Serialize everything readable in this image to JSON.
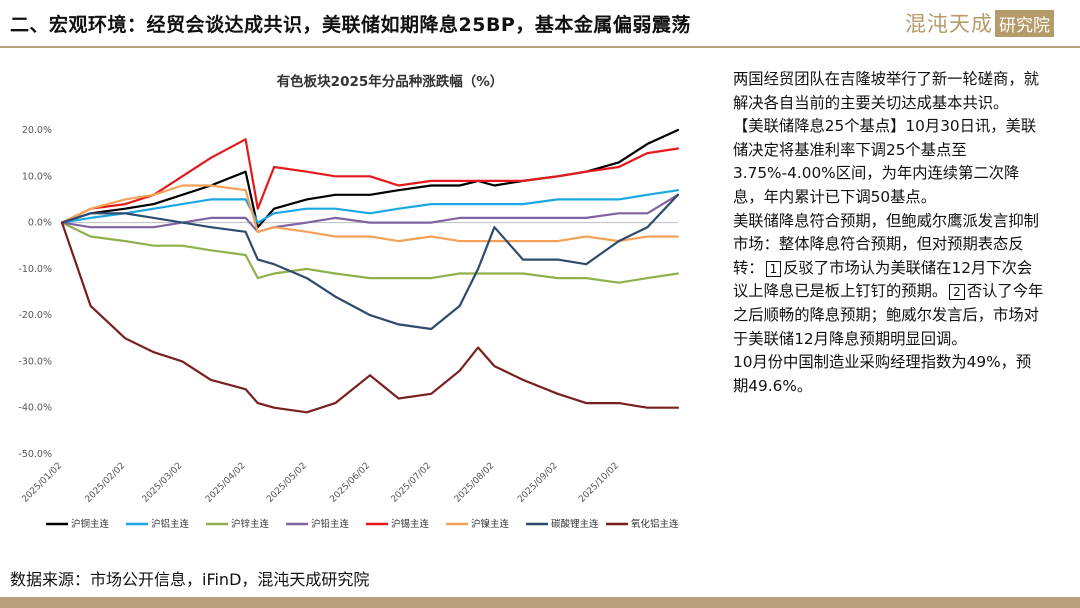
{
  "header": {
    "title": "二、宏观环境：经贸会谈达成共识，美联储如期降息25BP，基本金属偏弱震荡",
    "logo_text": "混沌天成",
    "logo_box": "研究院",
    "accent_color": "#b8a07a"
  },
  "chart_data": {
    "type": "line",
    "title": "有色板块2025年分品种涨跌幅（%）",
    "xlabel": "",
    "ylabel": "",
    "ylim": [
      -50,
      20
    ],
    "yticks": [
      "20.0%",
      "10.0%",
      "0.0%",
      "-10.0%",
      "-20.0%",
      "-30.0%",
      "-40.0%",
      "-50.0%"
    ],
    "ytick_values": [
      20,
      10,
      0,
      -10,
      -20,
      -30,
      -40,
      -50
    ],
    "x": [
      "2025/01/02",
      "2025/01/16",
      "2025/02/02",
      "2025/02/16",
      "2025/03/02",
      "2025/03/16",
      "2025/04/02",
      "2025/04/08",
      "2025/04/16",
      "2025/05/02",
      "2025/05/16",
      "2025/06/02",
      "2025/06/16",
      "2025/07/02",
      "2025/07/16",
      "2025/07/25",
      "2025/08/02",
      "2025/08/16",
      "2025/09/02",
      "2025/09/16",
      "2025/10/02",
      "2025/10/16",
      "2025/10/31"
    ],
    "xticks": [
      "2025/01/02",
      "2025/02/02",
      "2025/03/02",
      "2025/04/02",
      "2025/05/02",
      "2025/06/02",
      "2025/07/02",
      "2025/08/02",
      "2025/09/02",
      "2025/10/02"
    ],
    "grid": false,
    "legend_position": "bottom",
    "series": [
      {
        "name": "沪铜主连",
        "color": "#000000",
        "values": [
          0,
          2,
          3,
          4,
          6,
          8,
          11,
          -1,
          3,
          5,
          6,
          6,
          7,
          8,
          8,
          9,
          8,
          9,
          10,
          11,
          13,
          17,
          20
        ]
      },
      {
        "name": "沪铝主连",
        "color": "#1aa7e4",
        "values": [
          0,
          1,
          2,
          3,
          4,
          5,
          5,
          0,
          2,
          3,
          3,
          2,
          3,
          4,
          4,
          4,
          4,
          4,
          5,
          5,
          5,
          6,
          7
        ]
      },
      {
        "name": "沪锌主连",
        "color": "#8fb04b",
        "values": [
          0,
          -3,
          -4,
          -5,
          -5,
          -6,
          -7,
          -12,
          -11,
          -10,
          -11,
          -12,
          -12,
          -12,
          -11,
          -11,
          -11,
          -11,
          -12,
          -12,
          -13,
          -12,
          -11
        ]
      },
      {
        "name": "沪铅主连",
        "color": "#8064a2",
        "values": [
          0,
          -1,
          -1,
          -1,
          0,
          1,
          1,
          -2,
          -1,
          0,
          1,
          0,
          0,
          0,
          1,
          1,
          1,
          1,
          1,
          1,
          2,
          2,
          6
        ]
      },
      {
        "name": "沪锡主连",
        "color": "#e31a1c",
        "values": [
          0,
          3,
          4,
          6,
          10,
          14,
          18,
          3,
          12,
          11,
          10,
          10,
          8,
          9,
          9,
          9,
          9,
          9,
          10,
          11,
          12,
          15,
          16
        ]
      },
      {
        "name": "沪镍主连",
        "color": "#f4a259",
        "values": [
          0,
          3,
          5,
          6,
          8,
          8,
          7,
          -2,
          -1,
          -2,
          -3,
          -3,
          -4,
          -3,
          -4,
          -4,
          -4,
          -4,
          -4,
          -3,
          -4,
          -3,
          -3
        ]
      },
      {
        "name": "碳酸锂主连",
        "color": "#2e4b6e",
        "values": [
          0,
          2,
          2,
          1,
          0,
          -1,
          -2,
          -8,
          -9,
          -12,
          -16,
          -20,
          -22,
          -23,
          -18,
          -10,
          -1,
          -8,
          -8,
          -9,
          -4,
          -1,
          6
        ]
      },
      {
        "name": "氧化铝主连",
        "color": "#7a1f1f",
        "values": [
          0,
          -18,
          -25,
          -28,
          -30,
          -34,
          -36,
          -39,
          -40,
          -41,
          -39,
          -33,
          -38,
          -37,
          -32,
          -27,
          -31,
          -34,
          -37,
          -39,
          -39,
          -40,
          -40
        ]
      }
    ]
  },
  "right_text": {
    "p1": "两国经贸团队在吉隆坡举行了新一轮磋商，就解决各自当前的主要关切达成基本共识。",
    "p2": "【美联储降息25个基点】10月30日讯，美联储决定将基准利率下调25个基点至3.75%-4.00%区间，为年内连续第二次降息，年内累计已下调50基点。",
    "p3a": "美联储降息符合预期，但鲍威尔鹰派发言抑制市场：整体降息符合预期，但对预期表态反转：",
    "n1": "1",
    "p3b": "反驳了市场认为美联储在12月下次会议上降息已是板上钉钉的预期。",
    "n2": "2",
    "p3c": "否认了今年之后顺畅的降息预期；鲍威尔发言后，市场对于美联储12月降息预期明显回调。",
    "p4": "10月份中国制造业采购经理指数为49%，预期49.6%。"
  },
  "footer": {
    "source": "数据来源：市场公开信息，iFinD，混沌天成研究院"
  }
}
